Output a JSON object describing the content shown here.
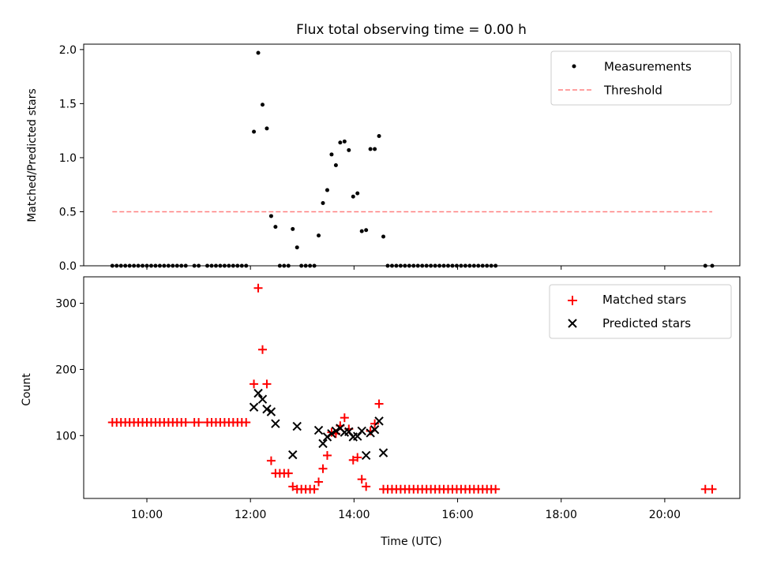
{
  "title": "Flux total observing time = 0.00 h",
  "chart_data": [
    {
      "type": "scatter",
      "ylabel": "Matched/Predicted stars",
      "xlabel": "",
      "xlim_hours": [
        8.78,
        21.45
      ],
      "ylim": [
        0,
        2.05
      ],
      "yticks": [
        "0.0",
        "0.5",
        "1.0",
        "1.5",
        "2.0"
      ],
      "legend": {
        "position": "top-right",
        "entries": [
          "Measurements",
          "Threshold"
        ]
      },
      "threshold": {
        "name": "Threshold",
        "value": 0.5,
        "x_range": [
          "09:20",
          "20:55"
        ],
        "color": "#ff8080"
      },
      "series": [
        {
          "name": "Measurements",
          "color": "#000000",
          "points": [
            [
              "09:20",
              0
            ],
            [
              "09:25",
              0
            ],
            [
              "09:30",
              0
            ],
            [
              "09:35",
              0
            ],
            [
              "09:40",
              0
            ],
            [
              "09:45",
              0
            ],
            [
              "09:50",
              0
            ],
            [
              "09:55",
              0
            ],
            [
              "10:00",
              0
            ],
            [
              "10:05",
              0
            ],
            [
              "10:10",
              0
            ],
            [
              "10:15",
              0
            ],
            [
              "10:20",
              0
            ],
            [
              "10:25",
              0
            ],
            [
              "10:30",
              0
            ],
            [
              "10:35",
              0
            ],
            [
              "10:40",
              0
            ],
            [
              "10:45",
              0
            ],
            [
              "10:55",
              0
            ],
            [
              "11:00",
              0
            ],
            [
              "11:10",
              0
            ],
            [
              "11:15",
              0
            ],
            [
              "11:20",
              0
            ],
            [
              "11:25",
              0
            ],
            [
              "11:30",
              0
            ],
            [
              "11:35",
              0
            ],
            [
              "11:40",
              0
            ],
            [
              "11:45",
              0
            ],
            [
              "11:50",
              0
            ],
            [
              "11:55",
              0
            ],
            [
              "12:04",
              1.24
            ],
            [
              "12:09",
              1.97
            ],
            [
              "12:14",
              1.49
            ],
            [
              "12:19",
              1.27
            ],
            [
              "12:24",
              0.46
            ],
            [
              "12:29",
              0.36
            ],
            [
              "12:34",
              0
            ],
            [
              "12:39",
              0
            ],
            [
              "12:44",
              0
            ],
            [
              "12:49",
              0.34
            ],
            [
              "12:54",
              0.17
            ],
            [
              "12:59",
              0
            ],
            [
              "13:04",
              0
            ],
            [
              "13:09",
              0
            ],
            [
              "13:14",
              0
            ],
            [
              "13:19",
              0.28
            ],
            [
              "13:24",
              0.58
            ],
            [
              "13:29",
              0.7
            ],
            [
              "13:34",
              1.03
            ],
            [
              "13:39",
              0.93
            ],
            [
              "13:44",
              1.14
            ],
            [
              "13:49",
              1.15
            ],
            [
              "13:54",
              1.07
            ],
            [
              "13:59",
              0.64
            ],
            [
              "14:04",
              0.67
            ],
            [
              "14:09",
              0.32
            ],
            [
              "14:14",
              0.33
            ],
            [
              "14:19",
              1.08
            ],
            [
              "14:24",
              1.08
            ],
            [
              "14:29",
              1.2
            ],
            [
              "14:34",
              0.27
            ],
            [
              "14:39",
              0
            ],
            [
              "14:44",
              0
            ],
            [
              "14:49",
              0
            ],
            [
              "14:54",
              0
            ],
            [
              "14:59",
              0
            ],
            [
              "15:04",
              0
            ],
            [
              "15:09",
              0
            ],
            [
              "15:14",
              0
            ],
            [
              "15:19",
              0
            ],
            [
              "15:24",
              0
            ],
            [
              "15:29",
              0
            ],
            [
              "15:34",
              0
            ],
            [
              "15:39",
              0
            ],
            [
              "15:44",
              0
            ],
            [
              "15:49",
              0
            ],
            [
              "15:54",
              0
            ],
            [
              "15:59",
              0
            ],
            [
              "16:04",
              0
            ],
            [
              "16:09",
              0
            ],
            [
              "16:14",
              0
            ],
            [
              "16:19",
              0
            ],
            [
              "16:24",
              0
            ],
            [
              "16:29",
              0
            ],
            [
              "16:34",
              0
            ],
            [
              "16:39",
              0
            ],
            [
              "16:44",
              0
            ],
            [
              "20:47",
              0
            ],
            [
              "20:55",
              0
            ]
          ]
        }
      ]
    },
    {
      "type": "scatter",
      "xlabel": "Time (UTC)",
      "ylabel": "Count",
      "xlim_hours": [
        8.78,
        21.45
      ],
      "ylim": [
        5,
        340
      ],
      "yticks": [
        100,
        200,
        300
      ],
      "xticks": [
        "10:00",
        "12:00",
        "14:00",
        "16:00",
        "18:00",
        "20:00"
      ],
      "legend": {
        "position": "top-right",
        "entries": [
          "Matched stars",
          "Predicted stars"
        ]
      },
      "series": [
        {
          "name": "Matched stars",
          "marker": "plus",
          "color": "#ff0000",
          "points": [
            [
              "09:20",
              120
            ],
            [
              "09:25",
              120
            ],
            [
              "09:30",
              120
            ],
            [
              "09:35",
              120
            ],
            [
              "09:40",
              120
            ],
            [
              "09:45",
              120
            ],
            [
              "09:50",
              120
            ],
            [
              "09:55",
              120
            ],
            [
              "10:00",
              120
            ],
            [
              "10:05",
              120
            ],
            [
              "10:10",
              120
            ],
            [
              "10:15",
              120
            ],
            [
              "10:20",
              120
            ],
            [
              "10:25",
              120
            ],
            [
              "10:30",
              120
            ],
            [
              "10:35",
              120
            ],
            [
              "10:40",
              120
            ],
            [
              "10:45",
              120
            ],
            [
              "10:55",
              120
            ],
            [
              "11:00",
              120
            ],
            [
              "11:10",
              120
            ],
            [
              "11:15",
              120
            ],
            [
              "11:20",
              120
            ],
            [
              "11:25",
              120
            ],
            [
              "11:30",
              120
            ],
            [
              "11:35",
              120
            ],
            [
              "11:40",
              120
            ],
            [
              "11:45",
              120
            ],
            [
              "11:50",
              120
            ],
            [
              "11:55",
              120
            ],
            [
              "12:04",
              178
            ],
            [
              "12:09",
              323
            ],
            [
              "12:14",
              230
            ],
            [
              "12:19",
              178
            ],
            [
              "12:24",
              62
            ],
            [
              "12:29",
              43
            ],
            [
              "12:34",
              43
            ],
            [
              "12:39",
              43
            ],
            [
              "12:44",
              43
            ],
            [
              "12:49",
              23
            ],
            [
              "12:54",
              19
            ],
            [
              "12:59",
              19
            ],
            [
              "13:04",
              19
            ],
            [
              "13:09",
              19
            ],
            [
              "13:14",
              19
            ],
            [
              "13:19",
              30
            ],
            [
              "13:24",
              50
            ],
            [
              "13:29",
              70
            ],
            [
              "13:34",
              105
            ],
            [
              "13:39",
              103
            ],
            [
              "13:44",
              115
            ],
            [
              "13:49",
              127
            ],
            [
              "13:54",
              110
            ],
            [
              "13:59",
              63
            ],
            [
              "14:04",
              67
            ],
            [
              "14:09",
              34
            ],
            [
              "14:14",
              23
            ],
            [
              "14:19",
              107
            ],
            [
              "14:24",
              118
            ],
            [
              "14:29",
              148
            ],
            [
              "14:34",
              19
            ],
            [
              "14:39",
              19
            ],
            [
              "14:44",
              19
            ],
            [
              "14:49",
              19
            ],
            [
              "14:54",
              19
            ],
            [
              "14:59",
              19
            ],
            [
              "15:04",
              19
            ],
            [
              "15:09",
              19
            ],
            [
              "15:14",
              19
            ],
            [
              "15:19",
              19
            ],
            [
              "15:24",
              19
            ],
            [
              "15:29",
              19
            ],
            [
              "15:34",
              19
            ],
            [
              "15:39",
              19
            ],
            [
              "15:44",
              19
            ],
            [
              "15:49",
              19
            ],
            [
              "15:54",
              19
            ],
            [
              "15:59",
              19
            ],
            [
              "16:04",
              19
            ],
            [
              "16:09",
              19
            ],
            [
              "16:14",
              19
            ],
            [
              "16:19",
              19
            ],
            [
              "16:24",
              19
            ],
            [
              "16:29",
              19
            ],
            [
              "16:34",
              19
            ],
            [
              "16:39",
              19
            ],
            [
              "16:44",
              19
            ],
            [
              "20:47",
              19
            ],
            [
              "20:55",
              19
            ]
          ]
        },
        {
          "name": "Predicted stars",
          "marker": "x",
          "color": "#000000",
          "points": [
            [
              "12:04",
              143
            ],
            [
              "12:09",
              164
            ],
            [
              "12:14",
              155
            ],
            [
              "12:19",
              140
            ],
            [
              "12:24",
              136
            ],
            [
              "12:29",
              118
            ],
            [
              "12:49",
              71
            ],
            [
              "12:54",
              114
            ],
            [
              "13:19",
              108
            ],
            [
              "13:24",
              88
            ],
            [
              "13:29",
              98
            ],
            [
              "13:34",
              103
            ],
            [
              "13:39",
              107
            ],
            [
              "13:44",
              111
            ],
            [
              "13:49",
              105
            ],
            [
              "13:54",
              106
            ],
            [
              "13:59",
              98
            ],
            [
              "14:04",
              99
            ],
            [
              "14:09",
              107
            ],
            [
              "14:14",
              70
            ],
            [
              "14:19",
              104
            ],
            [
              "14:24",
              109
            ],
            [
              "14:29",
              122
            ],
            [
              "14:34",
              74
            ]
          ]
        }
      ]
    }
  ]
}
